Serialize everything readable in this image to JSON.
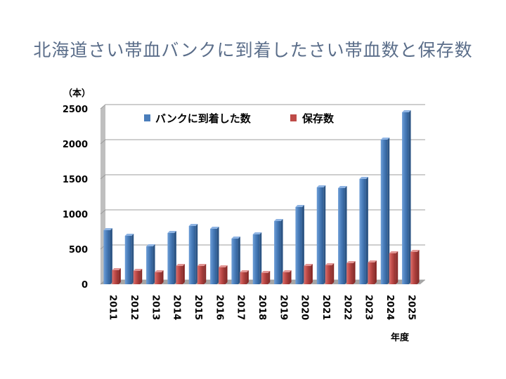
{
  "page": {
    "title": "北海道さい帯血バンクに到着したさい帯血数と保存数"
  },
  "chart_data": {
    "type": "bar",
    "title": "",
    "ylabel": "（本）",
    "xlabel": "年度",
    "ylim": [
      0,
      2500
    ],
    "yticks": [
      0,
      500,
      1000,
      1500,
      2000,
      2500
    ],
    "grid": true,
    "legend": "top",
    "categories": [
      "2011",
      "2012",
      "2013",
      "2014",
      "2015",
      "2016",
      "2017",
      "2018",
      "2019",
      "2020",
      "2021",
      "2022",
      "2023",
      "2024",
      "2025"
    ],
    "series": [
      {
        "name": "バンクに到着した数",
        "color": "#4a7ebb",
        "values": [
          770,
          690,
          540,
          730,
          830,
          790,
          650,
          710,
          900,
          1100,
          1380,
          1370,
          1500,
          2060,
          2450
        ]
      },
      {
        "name": "保存数",
        "color": "#be4b48",
        "values": [
          200,
          190,
          170,
          260,
          260,
          240,
          170,
          160,
          170,
          260,
          270,
          300,
          310,
          440,
          460
        ]
      }
    ]
  }
}
